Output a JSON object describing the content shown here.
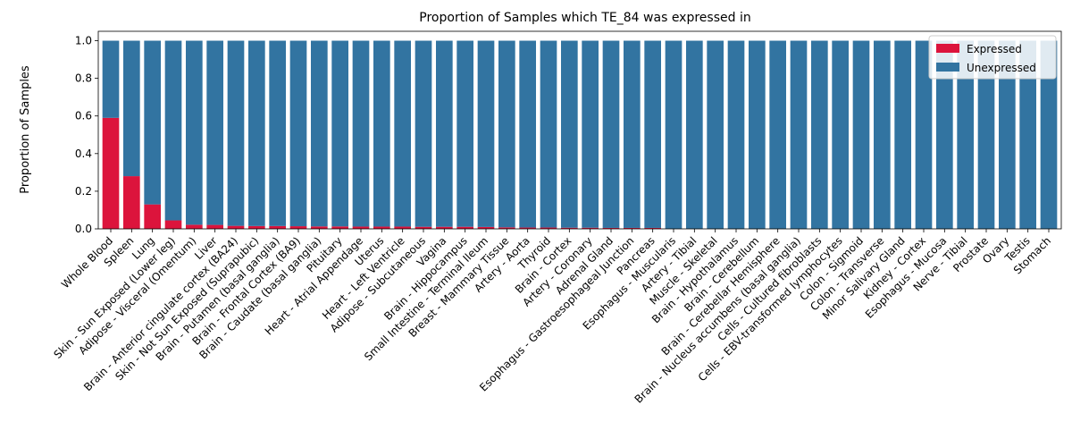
{
  "chart_data": {
    "type": "bar",
    "stacked": true,
    "title": "Proportion of Samples which TE_84 was expressed in",
    "xlabel": "",
    "ylabel": "Proportion of Samples",
    "ylim": [
      0,
      1.05
    ],
    "yticks": [
      "0.0",
      "0.2",
      "0.4",
      "0.6",
      "0.8",
      "1.0"
    ],
    "grid": false,
    "legend_position": "top-right",
    "categories": [
      "Whole Blood",
      "Spleen",
      "Lung",
      "Skin - Sun Exposed (Lower leg)",
      "Adipose - Visceral (Omentum)",
      "Liver",
      "Brain - Anterior cingulate cortex (BA24)",
      "Skin - Not Sun Exposed (Suprapubic)",
      "Brain - Putamen (basal ganglia)",
      "Brain - Frontal Cortex (BA9)",
      "Brain - Caudate (basal ganglia)",
      "Pituitary",
      "Heart - Atrial Appendage",
      "Uterus",
      "Heart - Left Ventricle",
      "Adipose - Subcutaneous",
      "Vagina",
      "Brain - Hippocampus",
      "Small Intestine - Terminal Ileum",
      "Breast - Mammary Tissue",
      "Artery - Aorta",
      "Thyroid",
      "Brain - Cortex",
      "Artery - Coronary",
      "Adrenal Gland",
      "Esophagus - Gastroesophageal Junction",
      "Pancreas",
      "Esophagus - Muscularis",
      "Artery - Tibial",
      "Muscle - Skeletal",
      "Brain - Hypothalamus",
      "Brain - Cerebellum",
      "Brain - Cerebellar Hemisphere",
      "Brain - Nucleus accumbens (basal ganglia)",
      "Cells - Cultured fibroblasts",
      "Cells - EBV-transformed lymphocytes",
      "Colon - Sigmoid",
      "Colon - Transverse",
      "Minor Salivary Gland",
      "Kidney - Cortex",
      "Esophagus - Mucosa",
      "Nerve - Tibial",
      "Prostate",
      "Ovary",
      "Testis",
      "Stomach"
    ],
    "series": [
      {
        "name": "Expressed",
        "color": "#dc143c",
        "values": [
          0.59,
          0.28,
          0.13,
          0.045,
          0.022,
          0.021,
          0.016,
          0.015,
          0.015,
          0.014,
          0.013,
          0.013,
          0.012,
          0.012,
          0.012,
          0.011,
          0.011,
          0.011,
          0.01,
          0.008,
          0.007,
          0.007,
          0.006,
          0.006,
          0.005,
          0.005,
          0.005,
          0.0,
          0.0,
          0.0,
          0.0,
          0.0,
          0.0,
          0.0,
          0.0,
          0.0,
          0.0,
          0.0,
          0.0,
          0.0,
          0.0,
          0.0,
          0.0,
          0.0,
          0.0,
          0.0
        ]
      },
      {
        "name": "Unexpressed",
        "color": "#3274a1",
        "values": [
          0.41,
          0.72,
          0.87,
          0.955,
          0.978,
          0.979,
          0.984,
          0.985,
          0.985,
          0.986,
          0.987,
          0.987,
          0.988,
          0.988,
          0.988,
          0.989,
          0.989,
          0.989,
          0.99,
          0.992,
          0.993,
          0.993,
          0.994,
          0.994,
          0.995,
          0.995,
          0.995,
          1.0,
          1.0,
          1.0,
          1.0,
          1.0,
          1.0,
          1.0,
          1.0,
          1.0,
          1.0,
          1.0,
          1.0,
          1.0,
          1.0,
          1.0,
          1.0,
          1.0,
          1.0,
          1.0
        ]
      }
    ]
  }
}
